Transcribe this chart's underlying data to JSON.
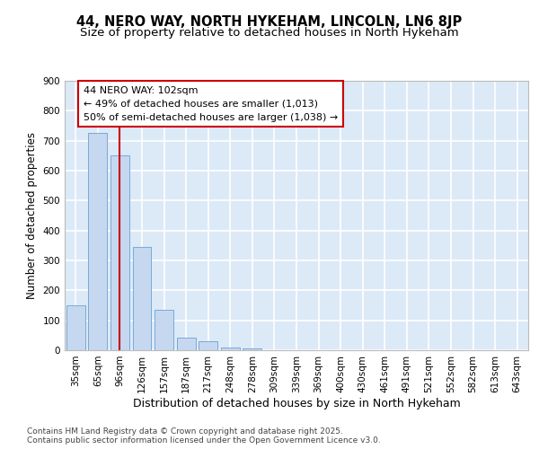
{
  "title1": "44, NERO WAY, NORTH HYKEHAM, LINCOLN, LN6 8JP",
  "title2": "Size of property relative to detached houses in North Hykeham",
  "xlabel": "Distribution of detached houses by size in North Hykeham",
  "ylabel": "Number of detached properties",
  "categories": [
    "35sqm",
    "65sqm",
    "96sqm",
    "126sqm",
    "157sqm",
    "187sqm",
    "217sqm",
    "248sqm",
    "278sqm",
    "309sqm",
    "339sqm",
    "369sqm",
    "400sqm",
    "430sqm",
    "461sqm",
    "491sqm",
    "521sqm",
    "552sqm",
    "582sqm",
    "613sqm",
    "643sqm"
  ],
  "values": [
    150,
    725,
    650,
    345,
    135,
    43,
    30,
    10,
    5,
    0,
    0,
    0,
    0,
    0,
    0,
    0,
    0,
    0,
    0,
    0,
    0
  ],
  "bar_color": "#c5d8f0",
  "bar_edge_color": "#7aaad4",
  "background_color": "#dce9f7",
  "grid_color": "#ffffff",
  "annotation_line1": "44 NERO WAY: 102sqm",
  "annotation_line2": "← 49% of detached houses are smaller (1,013)",
  "annotation_line3": "50% of semi-detached houses are larger (1,038) →",
  "annotation_box_color": "#ffffff",
  "annotation_box_edge_color": "#cc0000",
  "vline_color": "#cc0000",
  "vline_x_index": 2.0,
  "ylim": [
    0,
    900
  ],
  "yticks": [
    0,
    100,
    200,
    300,
    400,
    500,
    600,
    700,
    800,
    900
  ],
  "footnote": "Contains HM Land Registry data © Crown copyright and database right 2025.\nContains public sector information licensed under the Open Government Licence v3.0.",
  "title1_fontsize": 10.5,
  "title2_fontsize": 9.5,
  "xlabel_fontsize": 9,
  "ylabel_fontsize": 8.5,
  "tick_fontsize": 7.5,
  "annotation_fontsize": 8,
  "footnote_fontsize": 6.5
}
